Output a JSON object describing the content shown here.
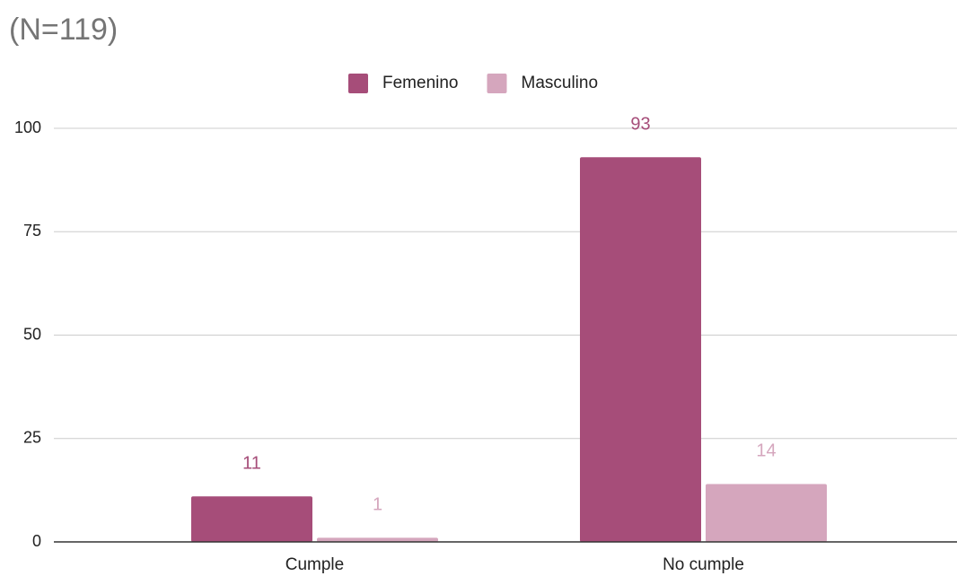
{
  "chart_data": {
    "type": "bar",
    "title": "(N=119)",
    "categories": [
      "Cumple",
      "No cumple"
    ],
    "series": [
      {
        "name": "Femenino",
        "color": "#a64d79",
        "values": [
          11,
          93
        ]
      },
      {
        "name": "Masculino",
        "color": "#d5a6bd",
        "values": [
          1,
          14
        ]
      }
    ],
    "ylim": [
      0,
      100
    ],
    "yticks": [
      0,
      25,
      50,
      75,
      100
    ],
    "grid": true,
    "legend": "top"
  }
}
